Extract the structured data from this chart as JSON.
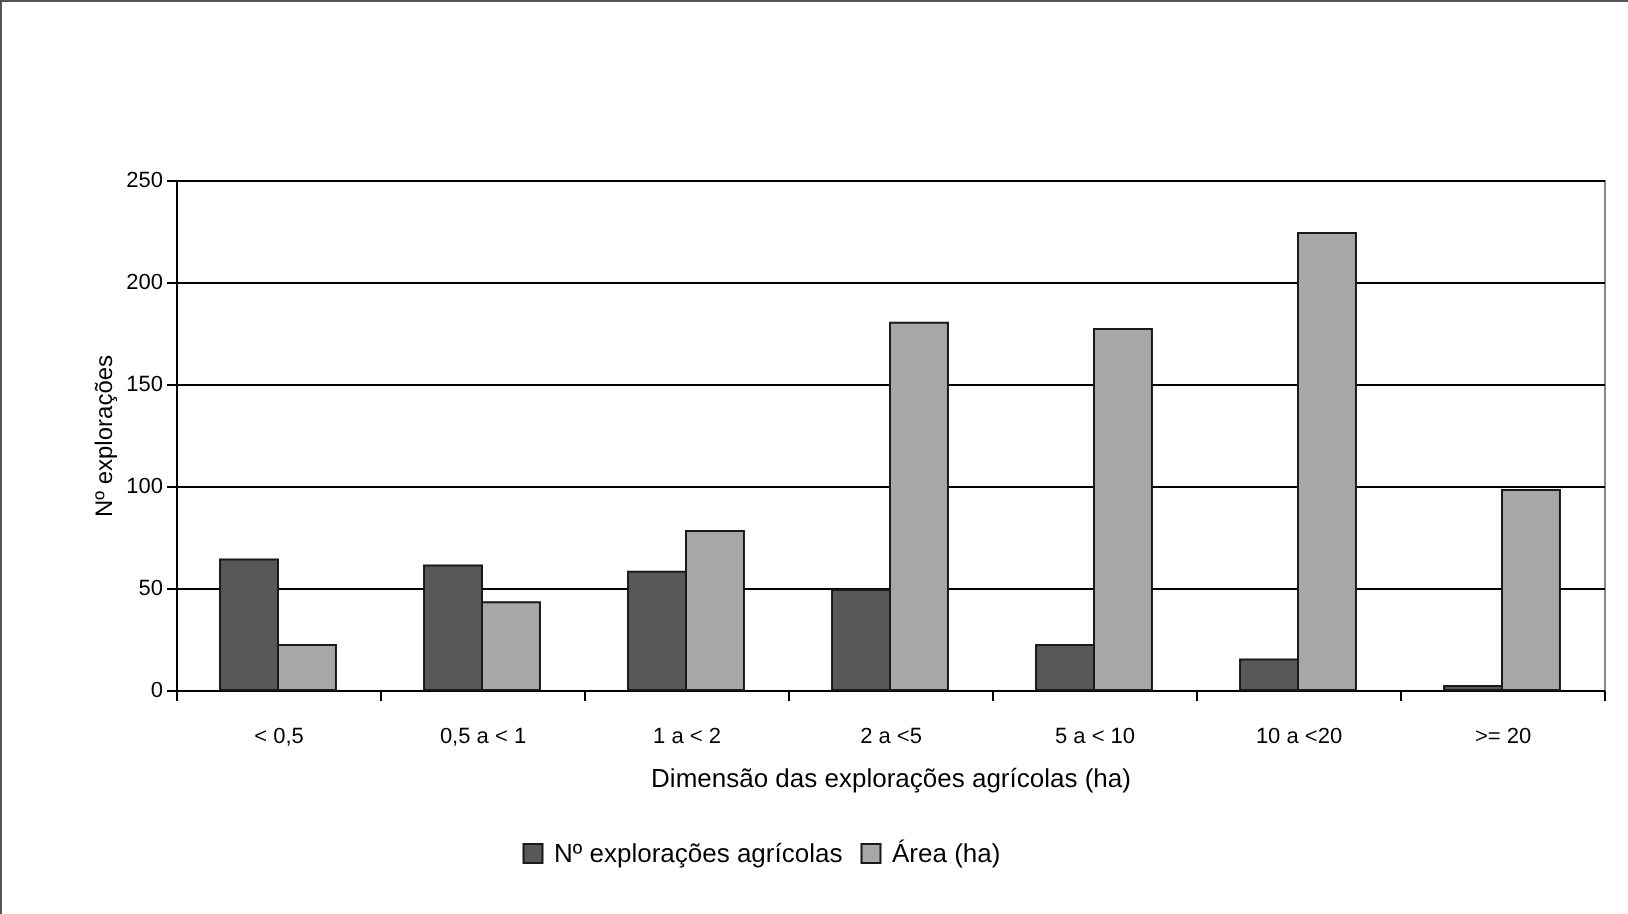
{
  "chart_data": {
    "type": "bar",
    "xlabel": "Dimensão das explorações agrícolas (ha)",
    "ylabel": "Nº explorações",
    "categories": [
      "< 0,5",
      "0,5 a < 1",
      "1 a < 2",
      "2 a <5",
      "5 a < 10",
      "10 a <20",
      ">= 20"
    ],
    "series": [
      {
        "name": "Nº explorações agrícolas",
        "color": "#58585a",
        "values": [
          64,
          61,
          58,
          49,
          22,
          15,
          2
        ]
      },
      {
        "name": "Área (ha)",
        "color": "#a6a7a9",
        "values": [
          22,
          43,
          78,
          180,
          177,
          224,
          98
        ]
      }
    ],
    "ylim": [
      0,
      250
    ],
    "yticks": [
      0,
      50,
      100,
      150,
      200,
      250
    ],
    "grid": "y",
    "legend": "bottom"
  }
}
